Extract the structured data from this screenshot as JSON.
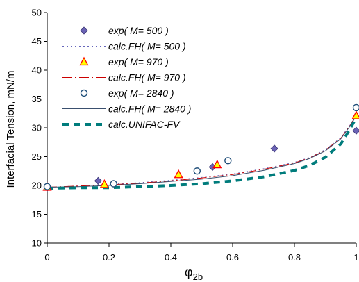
{
  "chart_data": {
    "type": "scatter",
    "xlabel": "φ",
    "xlabel_sub": "2b",
    "ylabel": "Interfacial Tension, mN/m",
    "xlim": [
      0,
      1
    ],
    "ylim": [
      10,
      50
    ],
    "xticks": [
      "0",
      "0.2",
      "0.4",
      "0.6",
      "0.8",
      "1"
    ],
    "yticks": [
      "10",
      "15",
      "20",
      "25",
      "30",
      "35",
      "40",
      "45",
      "50"
    ],
    "grid": false,
    "legend_position": "top-left inside",
    "series": [
      {
        "name": "exp( M= 500 )",
        "kind": "points",
        "marker": "diamond",
        "color": "#6B63B5",
        "x": [
          0.0,
          0.165,
          0.535,
          0.735,
          1.0
        ],
        "y": [
          19.6,
          20.8,
          23.2,
          26.4,
          29.5
        ]
      },
      {
        "name": "calc.FH( M= 500 )",
        "kind": "line",
        "dash": "2,4",
        "color": "#6666bb",
        "x": [
          0.0,
          0.1,
          0.2,
          0.3,
          0.4,
          0.5,
          0.6,
          0.7,
          0.8,
          0.85,
          0.9,
          0.95,
          0.98,
          1.0
        ],
        "y": [
          19.7,
          19.9,
          20.2,
          20.5,
          20.9,
          21.4,
          22.0,
          22.9,
          24.0,
          24.9,
          26.2,
          28.3,
          30.5,
          32.2
        ]
      },
      {
        "name": "exp( M= 970 )",
        "kind": "points",
        "marker": "triangle",
        "color": "#FF0000",
        "fill": "#FFFF00",
        "x": [
          0.0,
          0.185,
          0.425,
          0.55,
          1.0
        ],
        "y": [
          19.7,
          20.2,
          21.9,
          23.6,
          32.1
        ]
      },
      {
        "name": "calc.FH( M= 970 )",
        "kind": "line",
        "dash": "14,4,2,4",
        "color": "#CC0000",
        "x": [
          0.0,
          0.1,
          0.2,
          0.3,
          0.4,
          0.5,
          0.6,
          0.7,
          0.8,
          0.85,
          0.9,
          0.95,
          0.98,
          1.0
        ],
        "y": [
          19.7,
          19.9,
          20.1,
          20.4,
          20.8,
          21.3,
          21.9,
          22.8,
          23.9,
          24.8,
          26.1,
          28.2,
          30.4,
          32.2
        ]
      },
      {
        "name": "exp( M= 2840 )",
        "kind": "points",
        "marker": "circle",
        "color": "#1F4E79",
        "x": [
          0.0,
          0.215,
          0.485,
          0.585,
          1.0
        ],
        "y": [
          19.8,
          20.3,
          22.5,
          24.3,
          33.5
        ]
      },
      {
        "name": "calc.FH( M= 2840 )",
        "kind": "line",
        "dash": "none",
        "color": "#3A4F6E",
        "x": [
          0.0,
          0.1,
          0.2,
          0.3,
          0.4,
          0.5,
          0.6,
          0.7,
          0.8,
          0.85,
          0.9,
          0.95,
          0.98,
          1.0
        ],
        "y": [
          19.7,
          19.8,
          20.0,
          20.3,
          20.7,
          21.1,
          21.7,
          22.6,
          23.8,
          24.7,
          26.0,
          28.1,
          30.3,
          32.1
        ]
      },
      {
        "name": "calc.UNIFAC-FV",
        "kind": "line",
        "dash": "9,7",
        "color": "#007C7C",
        "x": [
          0.0,
          0.1,
          0.2,
          0.3,
          0.4,
          0.5,
          0.6,
          0.7,
          0.8,
          0.85,
          0.9,
          0.95,
          0.98,
          1.0
        ],
        "y": [
          19.5,
          19.6,
          19.6,
          19.8,
          20.0,
          20.3,
          20.8,
          21.5,
          22.6,
          23.5,
          24.9,
          27.2,
          29.8,
          31.8
        ]
      }
    ]
  }
}
